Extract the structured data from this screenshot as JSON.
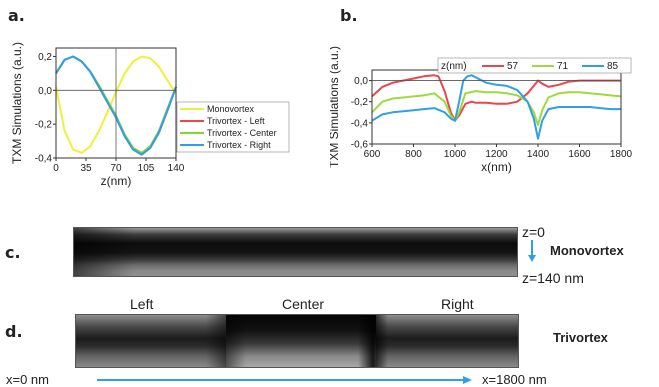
{
  "panels": {
    "a": "a.",
    "b": "b.",
    "c": "c.",
    "d": "d."
  },
  "chart_data": [
    {
      "type": "line",
      "panel": "a",
      "xlabel": "z(nm)",
      "ylabel": "TXM Simulations (a.u.)",
      "xlim": [
        0,
        140
      ],
      "ylim": [
        -0.4,
        0.25
      ],
      "xticks": [
        "0",
        "35",
        "70",
        "105",
        "140"
      ],
      "yticks": [
        "0,2",
        "0,0",
        "-0,2",
        "-0,4"
      ],
      "legend_position": "right",
      "series": [
        {
          "name": "Monovortex",
          "color": "#eef03c",
          "x": [
            0,
            10,
            20,
            30,
            40,
            50,
            60,
            70,
            80,
            90,
            100,
            110,
            120,
            130,
            140
          ],
          "y": [
            0.02,
            -0.24,
            -0.35,
            -0.37,
            -0.33,
            -0.24,
            -0.13,
            -0.01,
            0.1,
            0.17,
            0.2,
            0.19,
            0.14,
            0.06,
            -0.02
          ]
        },
        {
          "name": "Trivortex - Left",
          "color": "#e8474f",
          "x": [
            0,
            10,
            20,
            30,
            40,
            50,
            60,
            70,
            80,
            90,
            100,
            110,
            120,
            130,
            140
          ],
          "y": [
            0.1,
            0.18,
            0.2,
            0.17,
            0.11,
            0.02,
            -0.07,
            -0.16,
            -0.27,
            -0.35,
            -0.38,
            -0.34,
            -0.25,
            -0.12,
            0.02
          ]
        },
        {
          "name": "Trivortex - Center",
          "color": "#7fd63c",
          "x": [
            0,
            10,
            20,
            30,
            40,
            50,
            60,
            70,
            80,
            90,
            100,
            110,
            120,
            130,
            140
          ],
          "y": [
            0.1,
            0.18,
            0.2,
            0.17,
            0.11,
            0.03,
            -0.06,
            -0.15,
            -0.26,
            -0.34,
            -0.37,
            -0.33,
            -0.24,
            -0.11,
            0.02
          ]
        },
        {
          "name": "Trivortex - Right",
          "color": "#2f9fe8",
          "x": [
            0,
            10,
            20,
            30,
            40,
            50,
            60,
            70,
            80,
            90,
            100,
            110,
            120,
            130,
            140
          ],
          "y": [
            0.1,
            0.18,
            0.2,
            0.17,
            0.11,
            0.02,
            -0.07,
            -0.16,
            -0.27,
            -0.35,
            -0.38,
            -0.34,
            -0.25,
            -0.12,
            0.02
          ]
        }
      ]
    },
    {
      "type": "line",
      "panel": "b",
      "xlabel": "x(nm)",
      "ylabel": "TXM Simulations (a.u.)",
      "xlim": [
        600,
        1800
      ],
      "ylim": [
        -0.6,
        0.1
      ],
      "xticks": [
        "600",
        "800",
        "1000",
        "1200",
        "1400",
        "1600",
        "1800"
      ],
      "yticks": [
        "0,0",
        "-0,2",
        "-0,4",
        "-0,6"
      ],
      "legend_title": "z(nm)",
      "legend_position": "top",
      "series": [
        {
          "name": "57",
          "color": "#e8474f",
          "x": [
            600,
            650,
            700,
            750,
            800,
            850,
            900,
            920,
            950,
            980,
            1000,
            1020,
            1050,
            1080,
            1100,
            1150,
            1200,
            1250,
            1300,
            1350,
            1380,
            1400,
            1420,
            1450,
            1500,
            1550,
            1600,
            1650,
            1700,
            1750,
            1800
          ],
          "y": [
            -0.15,
            -0.06,
            -0.02,
            0.0,
            0.02,
            0.04,
            0.05,
            0.04,
            -0.1,
            -0.3,
            -0.38,
            -0.33,
            -0.22,
            -0.2,
            -0.21,
            -0.21,
            -0.22,
            -0.22,
            -0.2,
            -0.12,
            -0.05,
            0.0,
            -0.03,
            -0.06,
            -0.04,
            -0.01,
            0.0,
            0.0,
            0.0,
            0.0,
            0.0
          ]
        },
        {
          "name": "71",
          "color": "#9ed93e",
          "x": [
            600,
            650,
            700,
            750,
            800,
            850,
            900,
            950,
            980,
            1000,
            1020,
            1050,
            1100,
            1150,
            1200,
            1250,
            1300,
            1350,
            1380,
            1400,
            1420,
            1450,
            1500,
            1550,
            1600,
            1650,
            1700,
            1750,
            1800
          ],
          "y": [
            -0.3,
            -0.2,
            -0.17,
            -0.16,
            -0.15,
            -0.14,
            -0.12,
            -0.2,
            -0.33,
            -0.38,
            -0.3,
            -0.12,
            -0.1,
            -0.11,
            -0.11,
            -0.12,
            -0.14,
            -0.2,
            -0.3,
            -0.42,
            -0.28,
            -0.16,
            -0.12,
            -0.11,
            -0.11,
            -0.12,
            -0.13,
            -0.14,
            -0.15
          ]
        },
        {
          "name": "85",
          "color": "#2f9fe8",
          "x": [
            600,
            650,
            700,
            750,
            800,
            850,
            900,
            950,
            980,
            1000,
            1020,
            1040,
            1060,
            1080,
            1100,
            1150,
            1200,
            1250,
            1300,
            1350,
            1380,
            1400,
            1420,
            1450,
            1500,
            1550,
            1600,
            1650,
            1700,
            1750,
            1800
          ],
          "y": [
            -0.38,
            -0.32,
            -0.3,
            -0.29,
            -0.28,
            -0.27,
            -0.26,
            -0.3,
            -0.36,
            -0.38,
            -0.2,
            0.0,
            0.04,
            0.05,
            0.03,
            -0.02,
            -0.04,
            -0.05,
            -0.09,
            -0.2,
            -0.36,
            -0.55,
            -0.38,
            -0.27,
            -0.25,
            -0.25,
            -0.25,
            -0.25,
            -0.26,
            -0.27,
            -0.27
          ]
        }
      ]
    }
  ],
  "panel_c": {
    "z_top": "z=0",
    "z_bottom": "z=140 nm",
    "title": "Monovortex"
  },
  "panel_d": {
    "left": "Left",
    "center": "Center",
    "right": "Right",
    "title": "Trivortex",
    "x_start": "x=0 nm",
    "x_end": "x=1800 nm"
  },
  "colors": {
    "arrow": "#2f9fe8"
  }
}
